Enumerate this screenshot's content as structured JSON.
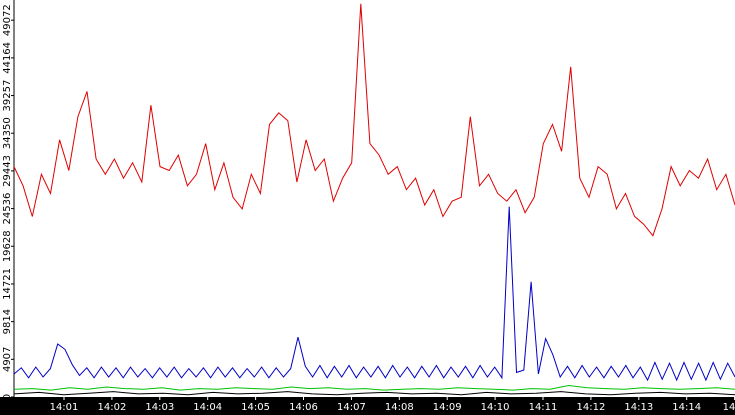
{
  "chart_data": {
    "type": "line",
    "ylim": [
      0,
      51700
    ],
    "yticks": [
      0,
      4907,
      9814,
      14721,
      19628,
      24536,
      29443,
      34350,
      39257,
      44164,
      49072
    ],
    "xtick_labels": [
      "14:01",
      "14:02",
      "14:03",
      "14:04",
      "14:05",
      "14:06",
      "14:07",
      "14:08",
      "14:09",
      "14:10",
      "14:11",
      "14:12",
      "14:13",
      "14:14",
      "14"
    ],
    "series": [
      {
        "color": "#e00000",
        "values": [
          30000,
          27500,
          23500,
          29000,
          26500,
          33500,
          29500,
          36500,
          39800,
          31000,
          29000,
          31000,
          28500,
          30500,
          28000,
          38000,
          30000,
          29500,
          31500,
          27500,
          29000,
          33000,
          27000,
          30500,
          26000,
          24500,
          29000,
          26500,
          35500,
          37000,
          36000,
          28000,
          33500,
          29500,
          31000,
          25500,
          28500,
          30500,
          51200,
          33000,
          31500,
          29000,
          30000,
          27000,
          28500,
          25000,
          27000,
          23500,
          25500,
          26000,
          36500,
          27500,
          29000,
          26500,
          25500,
          27000,
          24000,
          26000,
          33000,
          35500,
          32000,
          43000,
          28500,
          26000,
          30000,
          29000,
          24500,
          26500,
          23500,
          22500,
          21000,
          24500,
          30000,
          27500,
          29500,
          28500,
          31000,
          27000,
          29000,
          25000
        ]
      },
      {
        "color": "#0000c8",
        "values": [
          3000,
          3800,
          2500,
          3900,
          2600,
          3700,
          6900,
          6200,
          4200,
          2800,
          3800,
          2500,
          3900,
          2600,
          3800,
          2500,
          3900,
          2600,
          3700,
          2500,
          3800,
          2600,
          3900,
          2500,
          3700,
          2600,
          3800,
          2500,
          3900,
          2600,
          3800,
          2500,
          3700,
          2600,
          3900,
          2500,
          3800,
          2600,
          3700,
          7800,
          4000,
          2600,
          4100,
          2500,
          4000,
          2600,
          4100,
          2500,
          3900,
          2600,
          4000,
          2500,
          4100,
          2600,
          3900,
          2500,
          4000,
          2600,
          4100,
          2500,
          3900,
          2600,
          4000,
          2500,
          4100,
          2600,
          3900,
          2500,
          24800,
          3200,
          3500,
          15000,
          3000,
          7600,
          5500,
          2600,
          4000,
          2500,
          4100,
          2600,
          3900,
          2500,
          4000,
          2600,
          4100,
          2500,
          3900,
          2200,
          4500,
          2300,
          4400,
          2200,
          4500,
          2300,
          4400,
          2200,
          4500,
          2300,
          4400,
          2600
        ]
      },
      {
        "color": "#00c000",
        "values": [
          1000,
          1100,
          900,
          1200,
          1000,
          1300,
          1100,
          1000,
          1200,
          900,
          1100,
          1000,
          1200,
          1100,
          1000,
          1300,
          1100,
          1200,
          1000,
          1100,
          900,
          1000,
          1100,
          1000,
          1200,
          1100,
          1000,
          900,
          1100,
          1000,
          1500,
          1200,
          1100,
          1000,
          1200,
          1100,
          1000,
          1100,
          1200,
          1000
        ]
      },
      {
        "color": "#000000",
        "values": [
          400,
          600,
          300,
          500,
          700,
          400,
          500,
          300,
          600,
          400,
          500,
          700,
          400,
          300,
          500,
          600,
          400,
          500,
          300,
          600,
          400,
          500,
          700,
          400,
          300,
          500,
          600,
          400,
          500,
          300
        ]
      }
    ]
  }
}
